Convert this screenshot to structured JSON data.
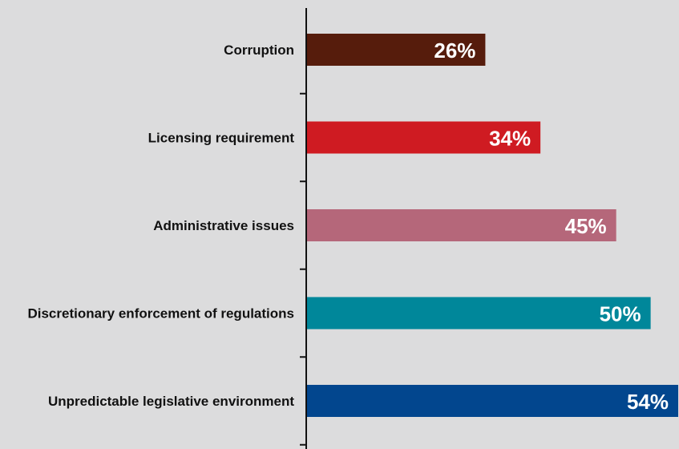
{
  "chart_data": {
    "type": "bar",
    "orientation": "horizontal",
    "title": "",
    "xlabel": "",
    "ylabel": "",
    "categories": [
      "Corruption",
      "Licensing requirement",
      "Administrative issues",
      "Discretionary enforcement of regulations",
      "Unpredictable legislative environment"
    ],
    "values": [
      26,
      34,
      45,
      50,
      54
    ],
    "value_labels": [
      "26%",
      "34%",
      "45%",
      "50%",
      "54%"
    ],
    "colors": [
      "#561c0c",
      "#cf1b22",
      "#b5677a",
      "#00879a",
      "#02468e"
    ],
    "xlim": [
      0,
      54
    ],
    "grid": false,
    "legend": "none"
  }
}
